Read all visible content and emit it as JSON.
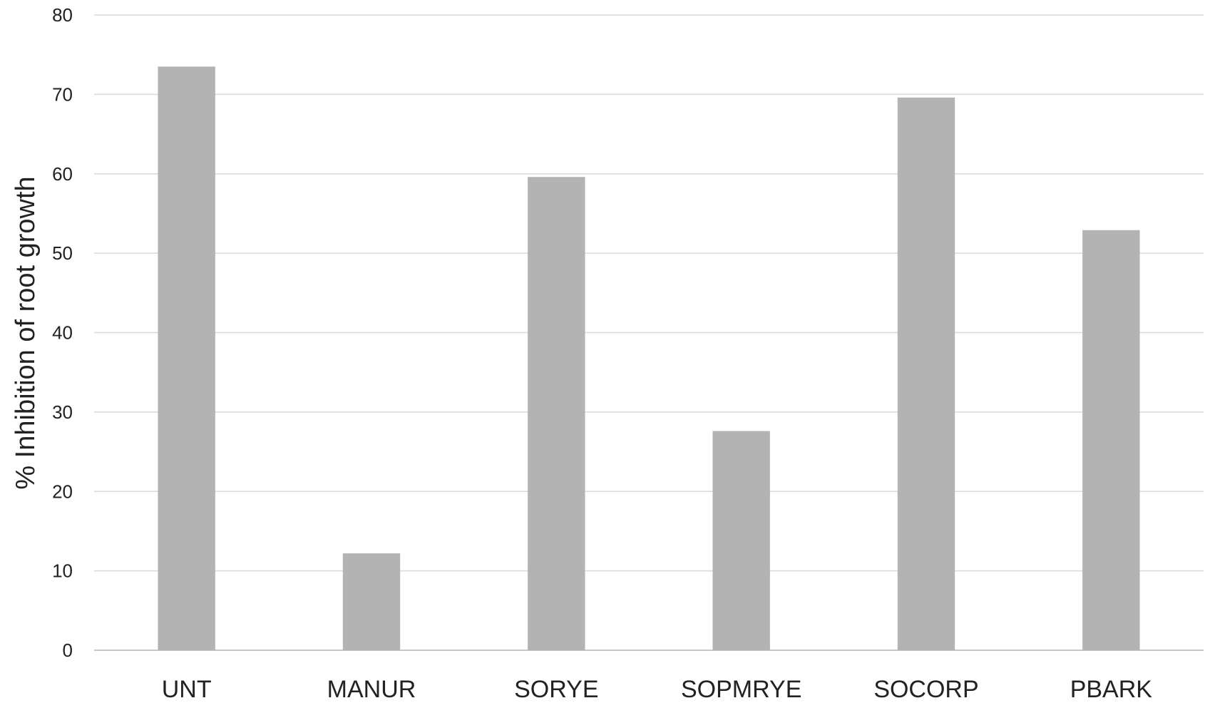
{
  "chart_data": {
    "type": "bar",
    "title": "",
    "xlabel": "",
    "ylabel": "% Inhibition of root growth",
    "categories": [
      "UNT",
      "MANUR",
      "SORYE",
      "SOPMRYE",
      "SOCORP",
      "PBARK"
    ],
    "values": [
      73.5,
      12.2,
      59.6,
      27.6,
      69.6,
      52.9
    ],
    "ylim": [
      0,
      80
    ],
    "yticks": [
      0,
      10,
      20,
      30,
      40,
      50,
      60,
      70,
      80
    ],
    "grid": true,
    "legend": "none",
    "colors": {
      "bar": "#b3b3b3",
      "grid": "#d9d9d9",
      "axis": "#c8c8c8",
      "text": "#222222"
    }
  }
}
